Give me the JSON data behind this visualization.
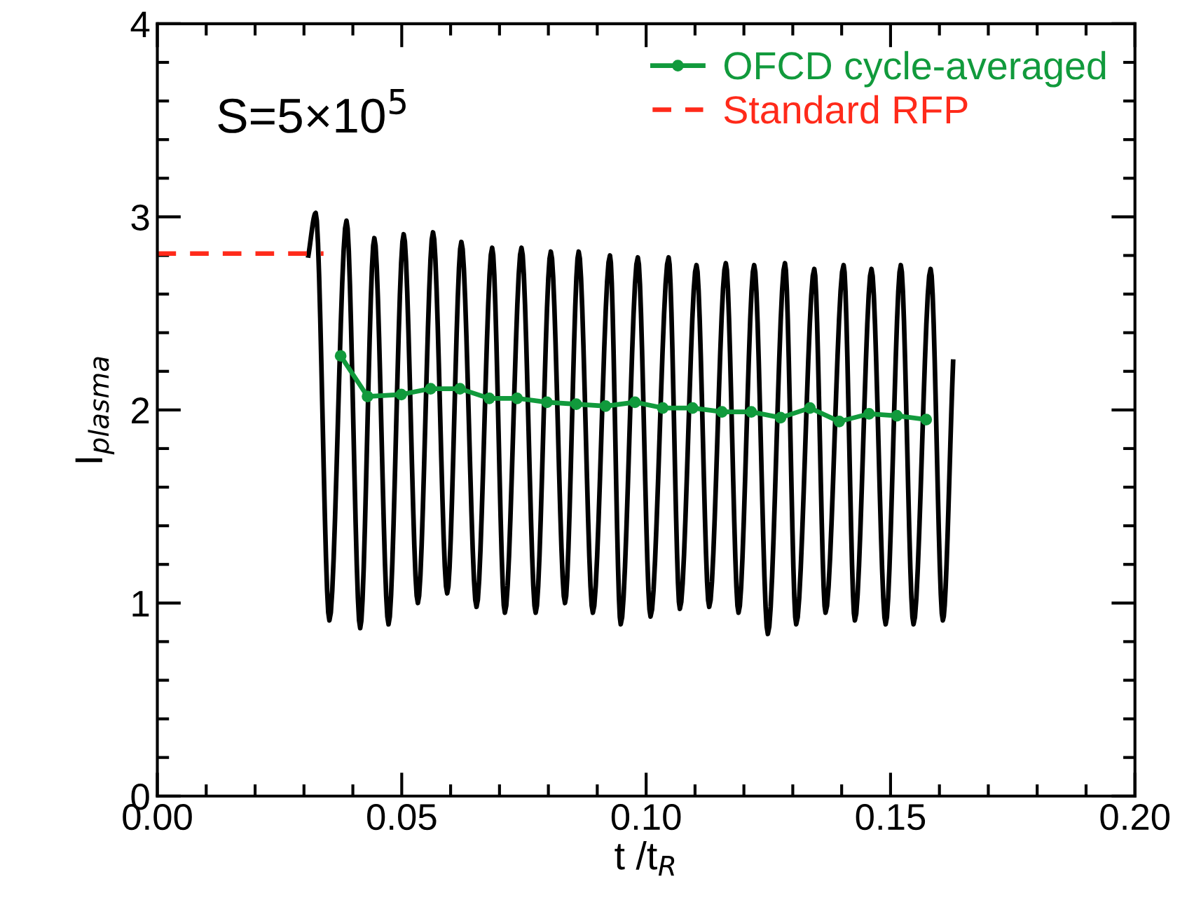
{
  "chart_data": {
    "type": "line",
    "xlabel": "t /t$_{R}$",
    "ylabel": "I$_{plasma}$",
    "annotations": [
      "S=5×10$^{5}$"
    ],
    "xlim": [
      0,
      0.2
    ],
    "ylim": [
      0,
      4
    ],
    "xticks": [
      {
        "value": 0,
        "label": "0.00"
      },
      {
        "value": 0.05,
        "label": "0.05"
      },
      {
        "value": 0.1,
        "label": "0.10"
      },
      {
        "value": 0.15,
        "label": "0.15"
      },
      {
        "value": 0.2,
        "label": "0.20"
      }
    ],
    "yticks": [
      0,
      1,
      2,
      3,
      4
    ],
    "grid": false,
    "legend": "top right",
    "series": [
      {
        "color": "#000000",
        "line_style": "solid",
        "marker": "none",
        "x": [
          0.0309,
          0.0324,
          0.0352,
          0.0387,
          0.0415,
          0.0444,
          0.0473,
          0.0504,
          0.0533,
          0.0564,
          0.0593,
          0.0622,
          0.0653,
          0.0685,
          0.0711,
          0.0745,
          0.0774,
          0.0805,
          0.0834,
          0.0862,
          0.0891,
          0.0926,
          0.0948,
          0.0983,
          0.1009,
          0.1046,
          0.1069,
          0.1103,
          0.1129,
          0.1163,
          0.1189,
          0.1221,
          0.1249,
          0.1284,
          0.1307,
          0.1344,
          0.1367,
          0.1404,
          0.1427,
          0.1461,
          0.149,
          0.1521,
          0.1547,
          0.1582,
          0.1607,
          0.1628
        ],
        "values": [
          2.8,
          3.02,
          0.91,
          2.98,
          0.87,
          2.89,
          0.89,
          2.91,
          1.0,
          2.92,
          1.05,
          2.87,
          0.98,
          2.84,
          0.95,
          2.84,
          0.95,
          2.82,
          1.0,
          2.82,
          0.95,
          2.8,
          0.89,
          2.79,
          0.93,
          2.79,
          0.97,
          2.75,
          0.98,
          2.76,
          0.95,
          2.75,
          0.84,
          2.76,
          0.89,
          2.73,
          0.95,
          2.75,
          0.91,
          2.73,
          0.89,
          2.75,
          0.89,
          2.73,
          0.91,
          2.25
        ]
      },
      {
        "name": "OFCD cycle-averaged",
        "color": "#119a3c",
        "line_style": "solid",
        "marker": "circle",
        "x": [
          0.0375,
          0.043,
          0.0499,
          0.0559,
          0.0619,
          0.0679,
          0.0736,
          0.0797,
          0.0857,
          0.0917,
          0.0977,
          0.1034,
          0.1095,
          0.1155,
          0.1215,
          0.1275,
          0.1335,
          0.1395,
          0.1456,
          0.1513,
          0.1573
        ],
        "values": [
          2.28,
          2.07,
          2.08,
          2.11,
          2.11,
          2.06,
          2.06,
          2.04,
          2.03,
          2.02,
          2.04,
          2.01,
          2.01,
          1.99,
          1.99,
          1.96,
          2.01,
          1.94,
          1.98,
          1.97,
          1.95
        ]
      },
      {
        "name": "Standard RFP",
        "color": "#ff2a1a",
        "line_style": "dashed",
        "marker": "none",
        "x": [
          0,
          0.034
        ],
        "values": [
          2.81,
          2.81
        ]
      }
    ]
  }
}
